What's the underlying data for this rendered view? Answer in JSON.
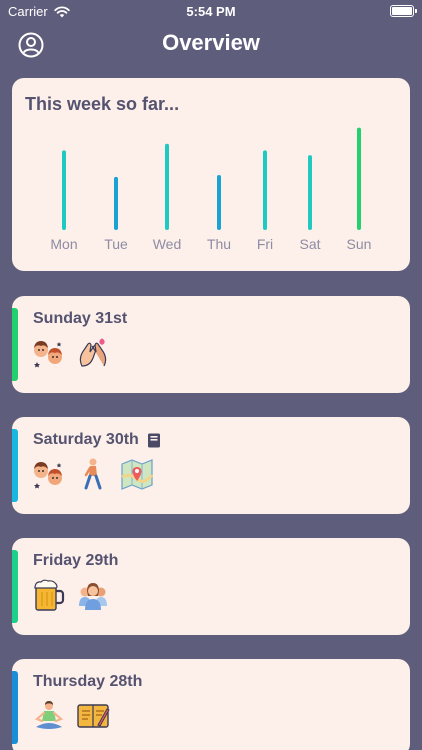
{
  "status_bar": {
    "carrier": "Carrier",
    "time": "5:54 PM"
  },
  "nav": {
    "title": "Overview"
  },
  "week": {
    "heading": "This week so far..."
  },
  "chart_data": {
    "type": "bar",
    "categories": [
      "Mon",
      "Tue",
      "Wed",
      "Thu",
      "Fri",
      "Sat",
      "Sun"
    ],
    "values": [
      80,
      52,
      87,
      54,
      80,
      75,
      104
    ],
    "colors": [
      "#1dc9c0",
      "#19a3d4",
      "#1dc9c0",
      "#19a3d4",
      "#1dc9c0",
      "#1dc9c0",
      "#22d16e"
    ],
    "ylim": [
      0,
      110
    ],
    "grid": false
  },
  "days": [
    {
      "title": "Sunday 31st",
      "accent": "#22d16e",
      "has_note": false,
      "icons": [
        "friends-icon",
        "high-five-icon"
      ]
    },
    {
      "title": "Saturday 30th",
      "accent": "#19b7e0",
      "has_note": true,
      "icons": [
        "friends-icon",
        "walking-icon",
        "map-icon"
      ]
    },
    {
      "title": "Friday 29th",
      "accent": "#1dd18c",
      "has_note": false,
      "icons": [
        "beer-icon",
        "group-icon"
      ]
    },
    {
      "title": "Thursday 28th",
      "accent": "#1a8fd8",
      "has_note": false,
      "icons": [
        "meditation-icon",
        "journal-icon"
      ]
    }
  ]
}
